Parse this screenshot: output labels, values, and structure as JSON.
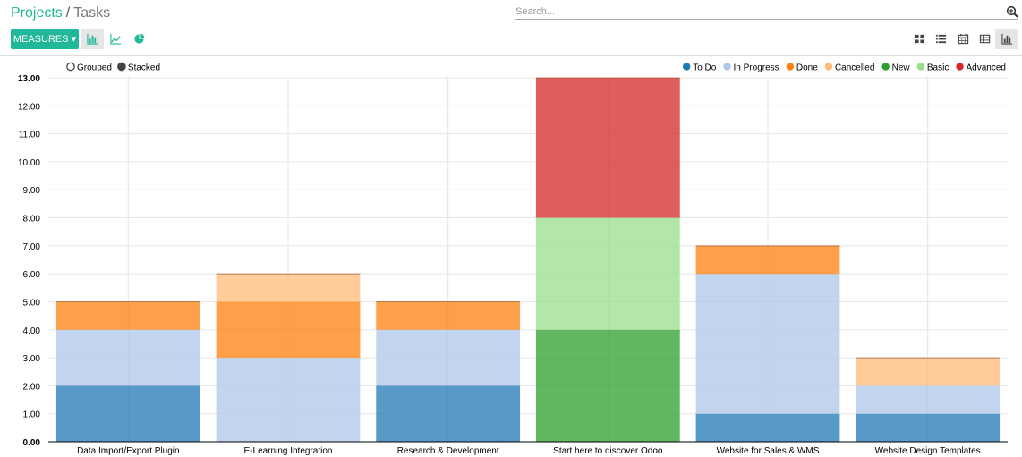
{
  "breadcrumb": {
    "parent": "Projects",
    "separator": "/",
    "current": "Tasks"
  },
  "search": {
    "placeholder": "Search..."
  },
  "toolbar": {
    "measures_label": "MEASURES",
    "chart_modes": [
      {
        "icon": "bar-chart-icon",
        "active": true
      },
      {
        "icon": "line-chart-icon",
        "active": false
      },
      {
        "icon": "pie-chart-icon",
        "active": false
      }
    ],
    "views": [
      {
        "icon": "kanban-view-icon",
        "active": false
      },
      {
        "icon": "list-view-icon",
        "active": false
      },
      {
        "icon": "calendar-view-icon",
        "active": false
      },
      {
        "icon": "pivot-view-icon",
        "active": false
      },
      {
        "icon": "graph-view-icon",
        "active": true
      }
    ]
  },
  "chart_data": {
    "type": "bar",
    "stacked": true,
    "controls": [
      {
        "label": "Grouped",
        "selected": false
      },
      {
        "label": "Stacked",
        "selected": true
      }
    ],
    "categories": [
      "Data Import/Export Plugin",
      "E-Learning Integration",
      "Research & Development",
      "Start here to discover Odoo",
      "Website for Sales & WMS",
      "Website Design Templates"
    ],
    "series": [
      {
        "name": "To Do",
        "color": "#1f77b4",
        "values": [
          2,
          0,
          2,
          0,
          1,
          1
        ]
      },
      {
        "name": "In Progress",
        "color": "#aec7e8",
        "values": [
          2,
          3,
          2,
          0,
          5,
          1
        ]
      },
      {
        "name": "Done",
        "color": "#ff7f0e",
        "values": [
          1,
          2,
          1,
          0,
          1,
          0
        ]
      },
      {
        "name": "Cancelled",
        "color": "#ffbb78",
        "values": [
          0,
          1,
          0,
          0,
          0,
          1
        ]
      },
      {
        "name": "New",
        "color": "#2ca02c",
        "values": [
          0,
          0,
          0,
          4,
          0,
          0
        ]
      },
      {
        "name": "Basic",
        "color": "#98df8a",
        "values": [
          0,
          0,
          0,
          4,
          0,
          0
        ]
      },
      {
        "name": "Advanced",
        "color": "#d62728",
        "values": [
          0,
          0,
          0,
          5,
          0,
          0
        ]
      }
    ],
    "yticks": [
      "0.00",
      "1.00",
      "2.00",
      "3.00",
      "4.00",
      "5.00",
      "6.00",
      "7.00",
      "8.00",
      "9.00",
      "10.00",
      "11.00",
      "12.00",
      "13.00"
    ],
    "ylim": [
      0,
      13
    ],
    "grid": true,
    "legend_position": "top-right"
  }
}
